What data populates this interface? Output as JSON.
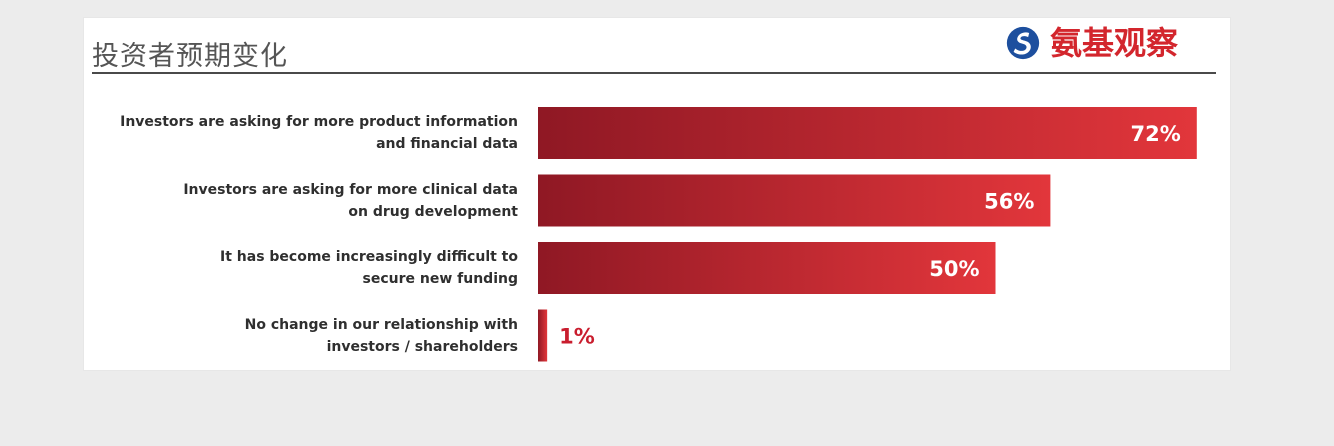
{
  "header": {
    "title": "投资者预期变化",
    "brand_text": "氨基观察",
    "brand_icon": "brand-logo-icon"
  },
  "colors": {
    "bar_start": "#8f1824",
    "bar_end": "#e2363b",
    "value_inside": "#ffffff",
    "value_outside": "#c91d2e",
    "label_text": "#2f2f2f",
    "accent": "#d3262d"
  },
  "chart_data": {
    "type": "bar",
    "orientation": "horizontal",
    "categories": [
      "Investors are asking for more product information and financial data",
      "Investors are asking for more clinical data on drug development",
      "It has become increasingly difficult to secure new funding",
      "No change in our relationship with investors / shareholders"
    ],
    "values": [
      72,
      56,
      50,
      1
    ],
    "value_labels": [
      "72%",
      "56%",
      "50%",
      "1%"
    ],
    "title": "投资者预期变化",
    "xlabel": "",
    "ylabel": "",
    "xlim": [
      0,
      100
    ],
    "grid": false,
    "legend": "none"
  },
  "labels": [
    {
      "line1": "Investors are asking for more product information",
      "line2": "and financial data"
    },
    {
      "line1": "Investors are asking for more clinical data",
      "line2": "on drug development"
    },
    {
      "line1": "It has become increasingly difficult to",
      "line2": "secure new funding"
    },
    {
      "line1": "No change in our relationship with",
      "line2": "investors / shareholders"
    }
  ]
}
